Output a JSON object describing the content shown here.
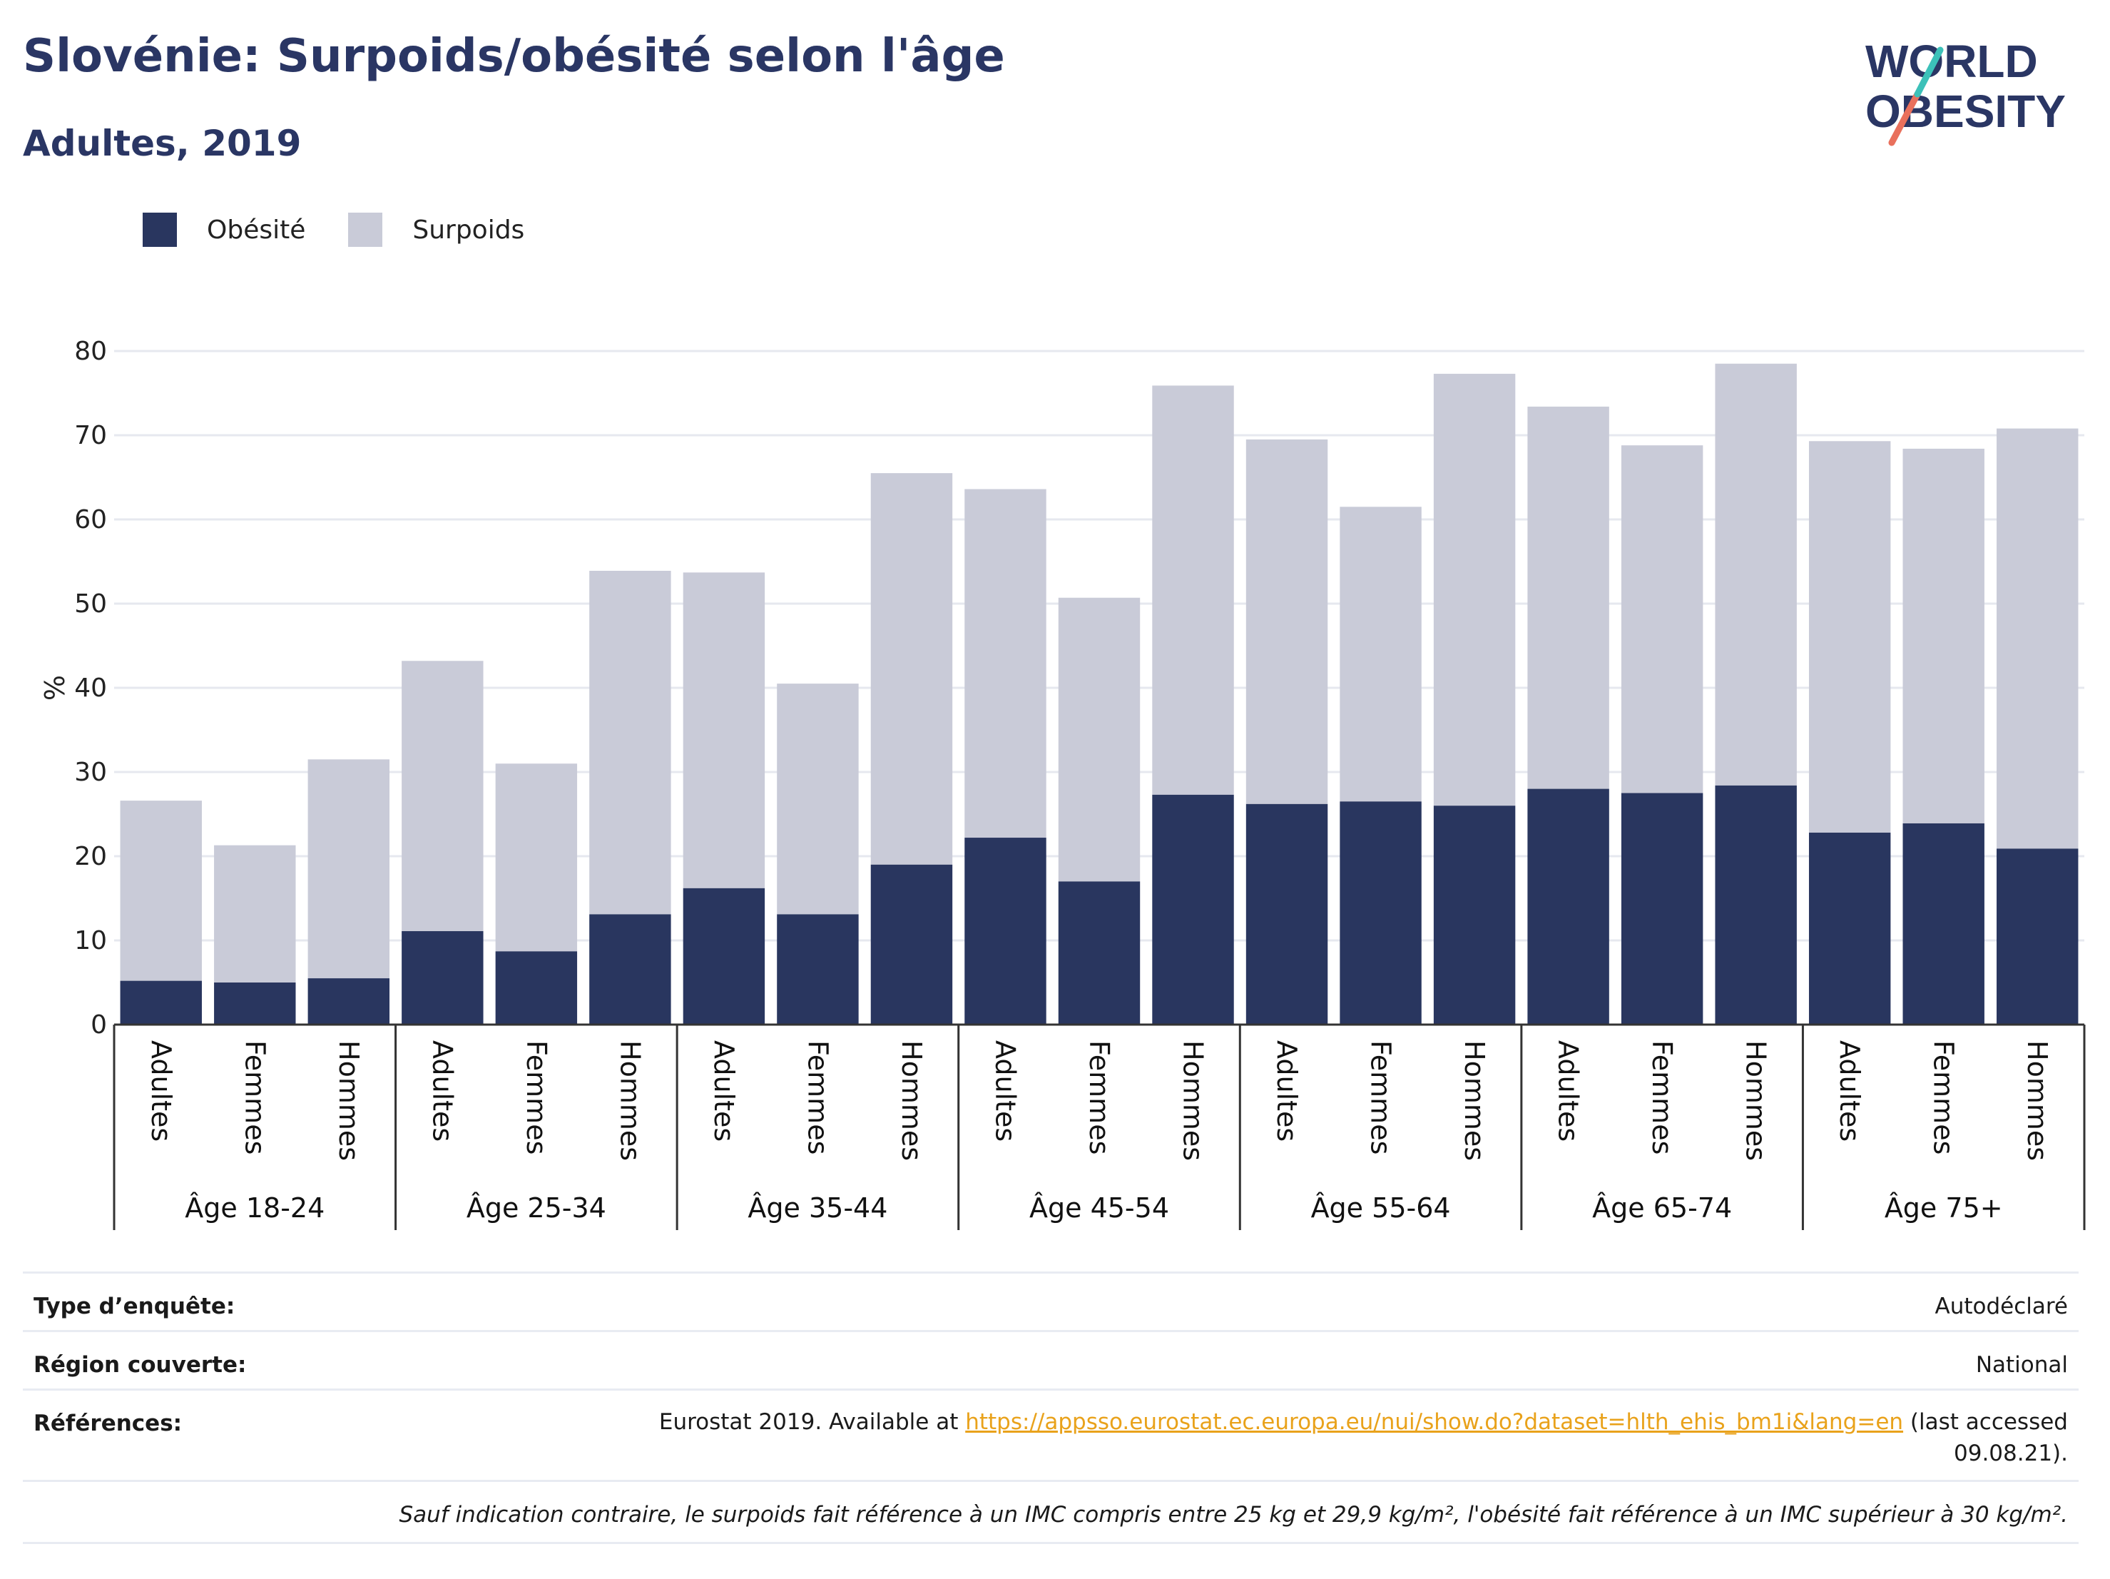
{
  "header": {
    "title": "Slovénie: Surpoids/obésité selon l'âge",
    "subtitle": "Adultes, 2019",
    "logo_line1": "WORLD",
    "logo_line2": "OBESITY"
  },
  "legend": {
    "obesity_label": "Obésité",
    "overweight_label": "Surpoids"
  },
  "colors": {
    "obesity": "#29365f",
    "overweight": "#c9cbd8",
    "gridline": "#e6e8ef",
    "axis": "#333333",
    "logo_navy": "#2a3664",
    "logo_teal": "#3cc1b9",
    "logo_coral": "#e9705c",
    "link": "#e9a21b"
  },
  "chart_data": {
    "type": "bar",
    "stacked": true,
    "ylabel": "%",
    "ylim": [
      0,
      80
    ],
    "yticks": [
      0,
      10,
      20,
      30,
      40,
      50,
      60,
      70,
      80
    ],
    "grid": true,
    "legend_position": "top-left",
    "groups": [
      "Âge 18-24",
      "Âge 25-34",
      "Âge 35-44",
      "Âge 45-54",
      "Âge 55-64",
      "Âge 65-74",
      "Âge 75+"
    ],
    "subcategories": [
      "Adultes",
      "Femmes",
      "Hommes"
    ],
    "series": [
      {
        "name": "Obésité",
        "values": [
          5.2,
          5.0,
          5.5,
          11.1,
          8.7,
          13.1,
          16.2,
          13.1,
          19.0,
          22.2,
          17.0,
          27.3,
          26.2,
          26.5,
          26.0,
          28.0,
          27.5,
          28.4,
          22.8,
          23.9,
          20.9
        ]
      },
      {
        "name": "Surpoids",
        "values": [
          21.4,
          16.3,
          26.0,
          32.1,
          22.3,
          40.8,
          37.5,
          27.4,
          46.5,
          41.4,
          33.7,
          48.6,
          43.3,
          35.0,
          51.3,
          45.4,
          41.3,
          50.1,
          46.5,
          44.5,
          49.9
        ]
      }
    ]
  },
  "info": {
    "survey_type_label": "Type d’enquête:",
    "survey_type_value": "Autodéclaré",
    "region_label": "Région couverte:",
    "region_value": "National",
    "references_label": "Références:",
    "references_prefix": "Eurostat 2019. Available at ",
    "references_link": "https://appsso.eurostat.ec.europa.eu/nui/show.do?dataset=hlth_ehis_bm1i&lang=en",
    "references_suffix_1": " (last accessed",
    "references_suffix_2": "09.08.21).",
    "note": "Sauf indication contraire, le surpoids fait référence à un IMC compris entre 25 kg et 29,9 kg/m², l'obésité fait référence à un IMC supérieur à 30 kg/m²."
  }
}
